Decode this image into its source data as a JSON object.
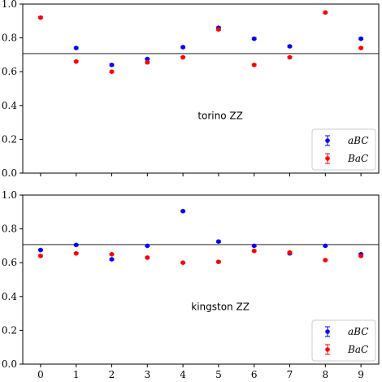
{
  "chart_data": [
    {
      "type": "scatter",
      "title": "",
      "panel_label": "torino ZZ",
      "x": [
        0,
        1,
        2,
        3,
        4,
        5,
        6,
        7,
        8,
        9
      ],
      "xlim": [
        -0.5,
        9.5
      ],
      "ylim": [
        0.0,
        1.0
      ],
      "x_ticks": [
        "0",
        "1",
        "2",
        "3",
        "4",
        "5",
        "6",
        "7",
        "8",
        "9"
      ],
      "y_ticks": [
        "0.0",
        "0.2",
        "0.4",
        "0.6",
        "0.8",
        "1.0"
      ],
      "x_tick_labels_shown": false,
      "hline": 0.707,
      "grid": false,
      "legend_position": "bottom-right",
      "series": [
        {
          "name": "aBC",
          "color": "#0000ff",
          "values": [
            null,
            0.74,
            0.64,
            0.675,
            0.745,
            0.86,
            0.795,
            0.75,
            null,
            0.795
          ],
          "err": 0.005
        },
        {
          "name": "BaC",
          "color": "#ff0000",
          "values": [
            0.92,
            0.66,
            0.6,
            0.655,
            0.685,
            0.85,
            0.64,
            0.685,
            0.95,
            0.74
          ],
          "err": 0.005
        }
      ]
    },
    {
      "type": "scatter",
      "title": "",
      "panel_label": "kingston ZZ",
      "x": [
        0,
        1,
        2,
        3,
        4,
        5,
        6,
        7,
        8,
        9
      ],
      "xlim": [
        -0.5,
        9.5
      ],
      "ylim": [
        0.0,
        1.0
      ],
      "x_ticks": [
        "0",
        "1",
        "2",
        "3",
        "4",
        "5",
        "6",
        "7",
        "8",
        "9"
      ],
      "y_ticks": [
        "0.0",
        "0.2",
        "0.4",
        "0.6",
        "0.8",
        "1.0"
      ],
      "x_tick_labels_shown": true,
      "hline": 0.707,
      "grid": false,
      "legend_position": "bottom-right",
      "series": [
        {
          "name": "aBC",
          "color": "#0000ff",
          "values": [
            0.675,
            0.705,
            0.62,
            0.7,
            0.905,
            0.725,
            0.7,
            0.655,
            0.7,
            0.65
          ],
          "err": 0.005
        },
        {
          "name": "BaC",
          "color": "#ff0000",
          "values": [
            0.64,
            0.655,
            0.65,
            0.63,
            0.6,
            0.605,
            0.67,
            0.66,
            0.615,
            0.64
          ],
          "err": 0.005
        }
      ]
    }
  ]
}
